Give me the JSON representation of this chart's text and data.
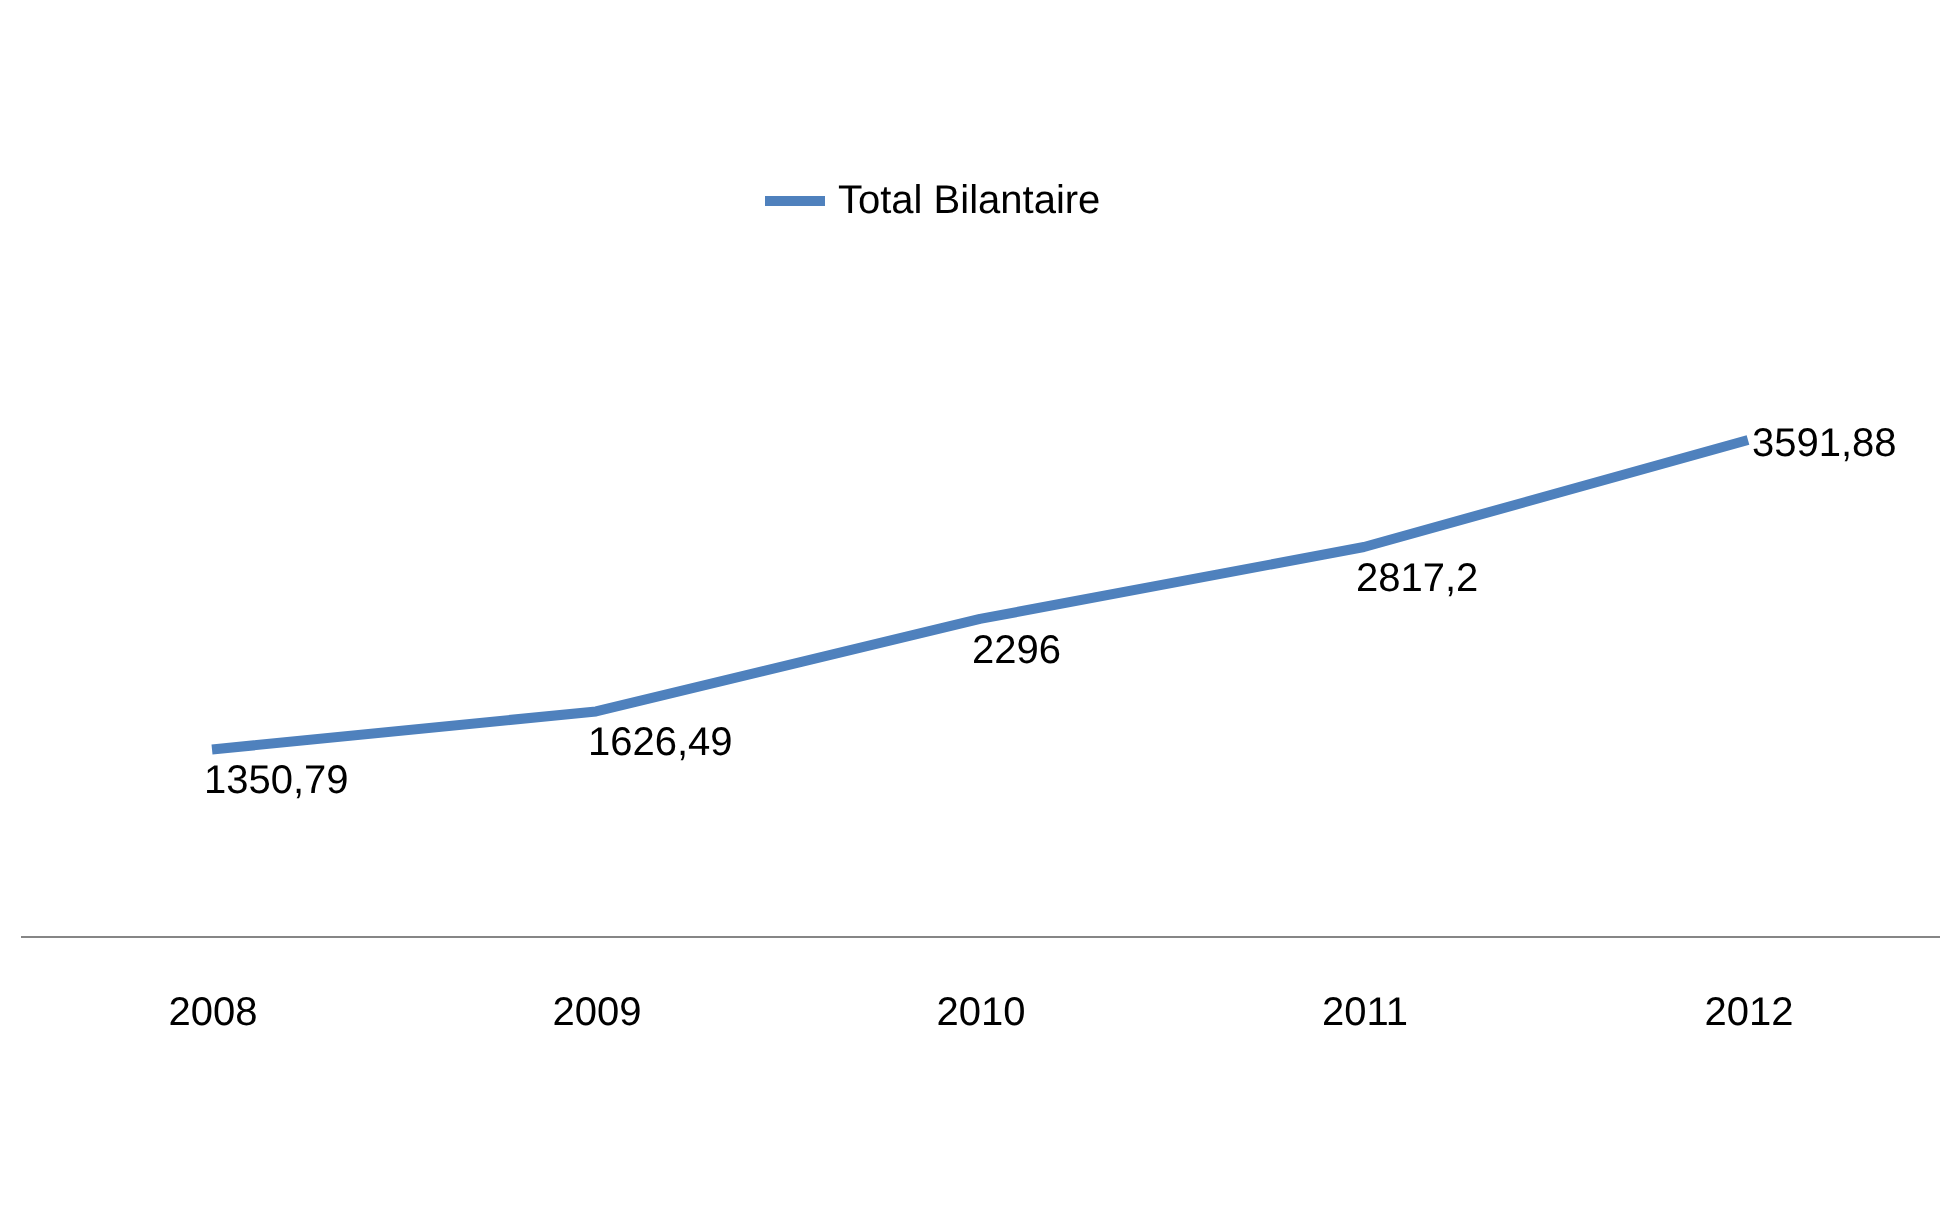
{
  "chart_data": {
    "type": "line",
    "categories": [
      "2008",
      "2009",
      "2010",
      "2011",
      "2012"
    ],
    "series": [
      {
        "name": "Total Bilantaire",
        "color": "#4f81bd",
        "values": [
          1350.79,
          1626.49,
          2296,
          2817.2,
          3591.88
        ],
        "value_labels": [
          "1350,79",
          "1626,49",
          "2296",
          "2817,2",
          "3591,88"
        ]
      }
    ],
    "tick_labels": "x",
    "legend": "top",
    "grid": false,
    "marker": "none",
    "line_style": "solid"
  }
}
